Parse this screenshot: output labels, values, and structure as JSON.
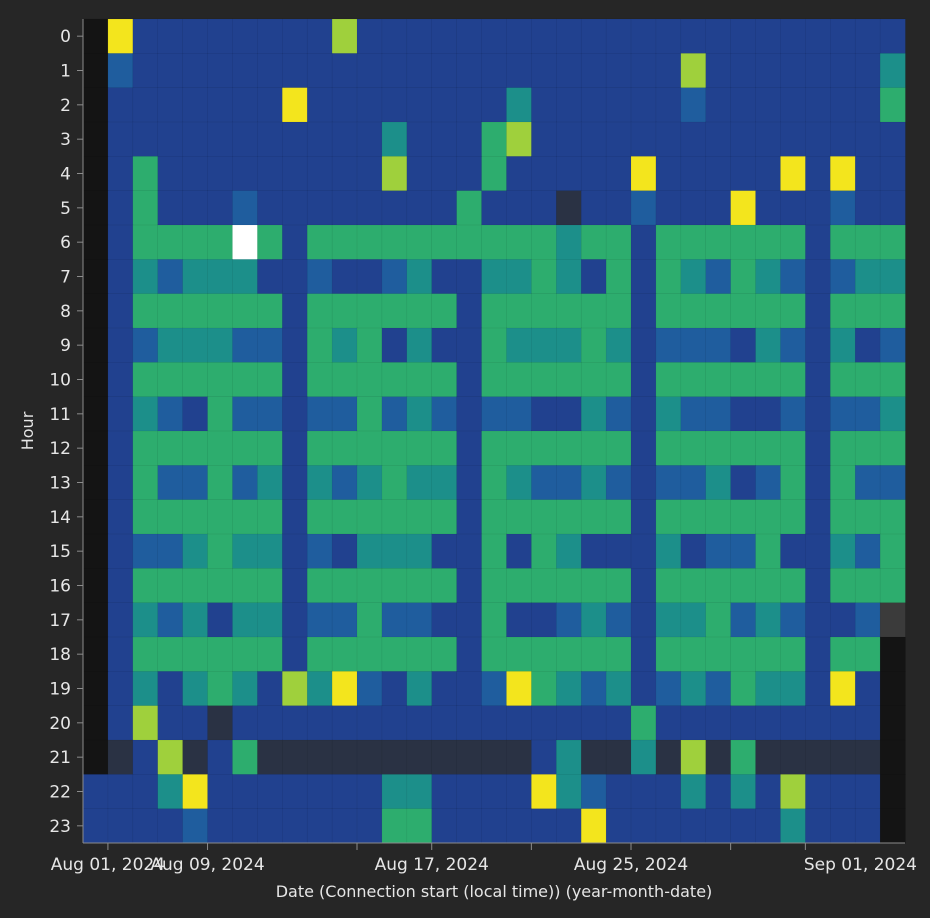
{
  "chart_data": {
    "type": "heatmap",
    "xlabel": "Date (Connection start (local time)) (year-month-date)",
    "ylabel": "Hour",
    "x_tick_labels": [
      "Aug 01, 2024",
      "Aug 09, 2024",
      "Aug 17, 2024",
      "Aug 25, 2024",
      "Sep 01, 2024"
    ],
    "x_range": [
      "Jul 31, 2024",
      "Sep 02, 2024"
    ],
    "y_categories": [
      "0",
      "1",
      "2",
      "3",
      "4",
      "5",
      "6",
      "7",
      "8",
      "9",
      "10",
      "11",
      "12",
      "13",
      "14",
      "15",
      "16",
      "17",
      "18",
      "19",
      "20",
      "21",
      "22",
      "23"
    ],
    "color_scale": [
      "#2a3244",
      "#21418f",
      "#1f5d9e",
      "#1c8f8a",
      "#2dad6e",
      "#9fd03c",
      "#f3e51d",
      "#ffffff"
    ],
    "color_scale_note": "value index 0-7 from low to high; -1 = no data",
    "no_data_color": "#141414",
    "partial_color": "#3b3b3b",
    "rows": [
      [
        -1,
        6,
        1,
        1,
        1,
        1,
        1,
        1,
        1,
        1,
        5,
        1,
        1,
        1,
        1,
        1,
        1,
        1,
        1,
        1,
        1,
        1,
        1,
        1,
        1,
        1,
        1,
        1,
        1,
        1,
        1,
        1,
        1
      ],
      [
        -1,
        2,
        1,
        1,
        1,
        1,
        1,
        1,
        1,
        1,
        1,
        1,
        1,
        1,
        1,
        1,
        1,
        1,
        1,
        1,
        1,
        1,
        1,
        1,
        5,
        1,
        1,
        1,
        1,
        1,
        1,
        1,
        3
      ],
      [
        -1,
        1,
        1,
        1,
        1,
        1,
        1,
        1,
        6,
        1,
        1,
        1,
        1,
        1,
        1,
        1,
        1,
        3,
        1,
        1,
        1,
        1,
        1,
        1,
        2,
        1,
        1,
        1,
        1,
        1,
        1,
        1,
        4
      ],
      [
        -1,
        1,
        1,
        1,
        1,
        1,
        1,
        1,
        1,
        1,
        1,
        1,
        3,
        1,
        1,
        1,
        4,
        5,
        1,
        1,
        1,
        1,
        1,
        1,
        1,
        1,
        1,
        1,
        1,
        1,
        1,
        1,
        1
      ],
      [
        -1,
        1,
        4,
        1,
        1,
        1,
        1,
        1,
        1,
        1,
        1,
        1,
        5,
        1,
        1,
        1,
        4,
        1,
        1,
        1,
        1,
        1,
        6,
        1,
        1,
        1,
        1,
        1,
        6,
        1,
        6,
        1,
        1
      ],
      [
        -1,
        1,
        4,
        1,
        1,
        1,
        2,
        1,
        1,
        1,
        1,
        1,
        1,
        1,
        1,
        4,
        1,
        1,
        1,
        0,
        1,
        1,
        2,
        1,
        1,
        1,
        6,
        1,
        1,
        1,
        2,
        1,
        1
      ],
      [
        -1,
        1,
        4,
        4,
        4,
        4,
        7,
        4,
        1,
        4,
        4,
        4,
        4,
        4,
        4,
        4,
        4,
        4,
        4,
        3,
        4,
        4,
        1,
        4,
        4,
        4,
        4,
        4,
        4,
        1,
        4,
        4,
        4
      ],
      [
        -1,
        1,
        3,
        2,
        3,
        3,
        3,
        1,
        1,
        2,
        1,
        1,
        2,
        3,
        1,
        1,
        3,
        3,
        4,
        3,
        1,
        4,
        1,
        4,
        3,
        2,
        4,
        3,
        2,
        1,
        2,
        3,
        3
      ],
      [
        -1,
        1,
        4,
        4,
        4,
        4,
        4,
        4,
        1,
        4,
        4,
        4,
        4,
        4,
        4,
        1,
        4,
        4,
        4,
        4,
        4,
        4,
        1,
        4,
        4,
        4,
        4,
        4,
        4,
        1,
        4,
        4,
        4
      ],
      [
        -1,
        1,
        2,
        3,
        3,
        3,
        2,
        2,
        1,
        4,
        3,
        4,
        1,
        3,
        1,
        1,
        4,
        3,
        3,
        3,
        4,
        3,
        1,
        2,
        2,
        2,
        1,
        3,
        2,
        1,
        3,
        1,
        2
      ],
      [
        -1,
        1,
        4,
        4,
        4,
        4,
        4,
        4,
        1,
        4,
        4,
        4,
        4,
        4,
        4,
        1,
        4,
        4,
        4,
        4,
        4,
        4,
        1,
        4,
        4,
        4,
        4,
        4,
        4,
        1,
        4,
        4,
        4
      ],
      [
        -1,
        1,
        3,
        2,
        1,
        4,
        2,
        2,
        1,
        2,
        2,
        4,
        2,
        3,
        2,
        1,
        2,
        2,
        1,
        1,
        3,
        2,
        1,
        3,
        2,
        2,
        1,
        1,
        2,
        1,
        2,
        2,
        3
      ],
      [
        -1,
        1,
        4,
        4,
        4,
        4,
        4,
        4,
        1,
        4,
        4,
        4,
        4,
        4,
        4,
        1,
        4,
        4,
        4,
        4,
        4,
        4,
        1,
        4,
        4,
        4,
        4,
        4,
        4,
        1,
        4,
        4,
        4
      ],
      [
        -1,
        1,
        4,
        2,
        2,
        4,
        2,
        3,
        1,
        3,
        2,
        3,
        4,
        3,
        3,
        1,
        4,
        3,
        2,
        2,
        3,
        2,
        1,
        2,
        2,
        3,
        1,
        2,
        4,
        1,
        4,
        2,
        2
      ],
      [
        -1,
        1,
        4,
        4,
        4,
        4,
        4,
        4,
        1,
        4,
        4,
        4,
        4,
        4,
        4,
        1,
        4,
        4,
        4,
        4,
        4,
        4,
        1,
        4,
        4,
        4,
        4,
        4,
        4,
        1,
        4,
        4,
        4
      ],
      [
        -1,
        1,
        2,
        2,
        3,
        4,
        3,
        3,
        1,
        2,
        1,
        3,
        3,
        3,
        1,
        1,
        4,
        1,
        4,
        3,
        1,
        1,
        1,
        3,
        1,
        2,
        2,
        4,
        1,
        1,
        3,
        2,
        4
      ],
      [
        -1,
        1,
        4,
        4,
        4,
        4,
        4,
        4,
        1,
        4,
        4,
        4,
        4,
        4,
        4,
        1,
        4,
        4,
        4,
        4,
        4,
        4,
        1,
        4,
        4,
        4,
        4,
        4,
        4,
        1,
        4,
        4,
        4
      ],
      [
        -1,
        1,
        3,
        2,
        3,
        1,
        3,
        3,
        1,
        2,
        2,
        4,
        2,
        2,
        1,
        1,
        4,
        1,
        1,
        2,
        3,
        2,
        1,
        3,
        3,
        4,
        2,
        3,
        2,
        1,
        1,
        2,
        -2
      ],
      [
        -1,
        1,
        4,
        4,
        4,
        4,
        4,
        4,
        1,
        4,
        4,
        4,
        4,
        4,
        4,
        1,
        4,
        4,
        4,
        4,
        4,
        4,
        1,
        4,
        4,
        4,
        4,
        4,
        4,
        1,
        4,
        4,
        -1
      ],
      [
        -1,
        1,
        3,
        1,
        3,
        4,
        3,
        1,
        5,
        3,
        6,
        2,
        1,
        3,
        1,
        1,
        2,
        6,
        4,
        3,
        2,
        3,
        1,
        2,
        3,
        2,
        4,
        3,
        3,
        1,
        6,
        1,
        -1
      ],
      [
        -1,
        1,
        5,
        1,
        1,
        0,
        1,
        1,
        1,
        1,
        1,
        1,
        1,
        1,
        1,
        1,
        1,
        1,
        1,
        1,
        1,
        1,
        4,
        1,
        1,
        1,
        1,
        1,
        1,
        1,
        1,
        1,
        -1
      ],
      [
        -1,
        0,
        1,
        5,
        0,
        1,
        4,
        0,
        0,
        0,
        0,
        0,
        0,
        0,
        0,
        0,
        0,
        0,
        1,
        3,
        0,
        0,
        3,
        0,
        5,
        0,
        4,
        0,
        0,
        0,
        0,
        0,
        -1
      ],
      [
        1,
        1,
        1,
        3,
        6,
        1,
        1,
        1,
        1,
        1,
        1,
        1,
        3,
        3,
        1,
        1,
        1,
        1,
        6,
        3,
        2,
        1,
        1,
        1,
        3,
        1,
        3,
        1,
        5,
        1,
        1,
        1,
        -1
      ],
      [
        1,
        1,
        1,
        1,
        2,
        1,
        1,
        1,
        1,
        1,
        1,
        1,
        4,
        4,
        1,
        1,
        1,
        1,
        1,
        1,
        6,
        1,
        1,
        1,
        1,
        1,
        1,
        1,
        3,
        1,
        1,
        1,
        -1
      ]
    ]
  }
}
